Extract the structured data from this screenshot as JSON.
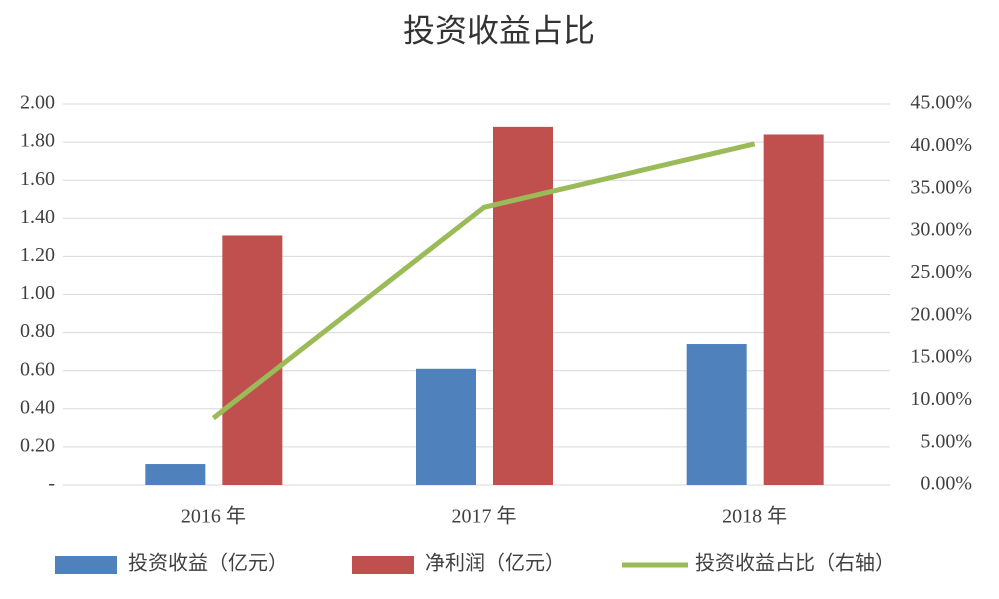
{
  "chart_data": {
    "type": "bar",
    "title": "投资收益占比",
    "categories": [
      "2016 年",
      "2017 年",
      "2018 年"
    ],
    "series": [
      {
        "name": "投资收益（亿元）",
        "type": "bar",
        "color": "#4f81bd",
        "values": [
          0.11,
          0.61,
          0.74
        ]
      },
      {
        "name": "净利润（亿元）",
        "type": "bar",
        "color": "#c0504d",
        "values": [
          1.31,
          1.88,
          1.84
        ]
      },
      {
        "name": "投资收益占比（右轴）",
        "type": "line",
        "axis": "y2",
        "color": "#9bbb59",
        "values": [
          7.9,
          32.8,
          40.3
        ]
      }
    ],
    "ylim": [
      0,
      2
    ],
    "yticks": [
      {
        "value": 0,
        "label": "-"
      },
      {
        "value": 0.2,
        "label": "0.20"
      },
      {
        "value": 0.4,
        "label": "0.40"
      },
      {
        "value": 0.6,
        "label": "0.60"
      },
      {
        "value": 0.8,
        "label": "0.80"
      },
      {
        "value": 1,
        "label": "1.00"
      },
      {
        "value": 1.2,
        "label": "1.20"
      },
      {
        "value": 1.4,
        "label": "1.40"
      },
      {
        "value": 1.6,
        "label": "1.60"
      },
      {
        "value": 1.8,
        "label": "1.80"
      },
      {
        "value": 2,
        "label": "2.00"
      }
    ],
    "y2lim": [
      0,
      45
    ],
    "y2ticks": [
      {
        "value": 0,
        "label": "0.00%"
      },
      {
        "value": 5,
        "label": "5.00%"
      },
      {
        "value": 10,
        "label": "10.00%"
      },
      {
        "value": 15,
        "label": "15.00%"
      },
      {
        "value": 20,
        "label": "20.00%"
      },
      {
        "value": 25,
        "label": "25.00%"
      },
      {
        "value": 30,
        "label": "30.00%"
      },
      {
        "value": 35,
        "label": "35.00%"
      },
      {
        "value": 40,
        "label": "40.00%"
      },
      {
        "value": 45,
        "label": "45.00%"
      }
    ],
    "grid": true,
    "legend": "bottom"
  }
}
